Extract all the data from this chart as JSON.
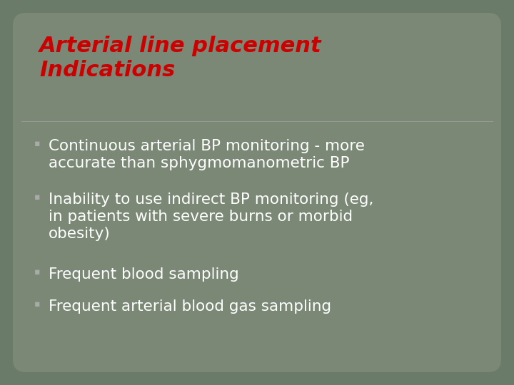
{
  "title_line1": "Arterial line placement",
  "title_line2": "Indications",
  "title_color": "#CC0000",
  "title_fontsize": 22,
  "background_color": "#7A8875",
  "body_color": "#FFFFFF",
  "body_fontsize": 15.5,
  "bullet_items": [
    "Continuous arterial BP monitoring - more\naccurate than sphygmomanometric BP",
    "Inability to use indirect BP monitoring (eg,\nin patients with severe burns or morbid\nobesity)",
    "Frequent blood sampling",
    "Frequent arterial blood gas sampling"
  ],
  "bullet_color": "#AAAAAA",
  "divider_color": "#999999",
  "border_color": "#999999",
  "outer_bg": "#6B7B6A"
}
